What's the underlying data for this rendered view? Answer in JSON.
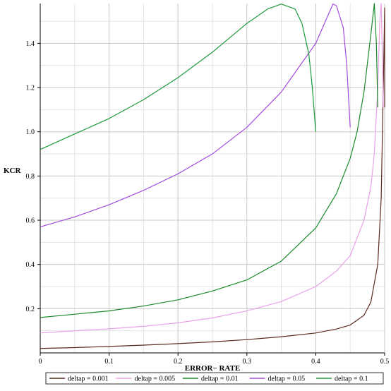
{
  "chart_data": {
    "type": "line",
    "title": "",
    "xlabel": "ERROR− RATE",
    "ylabel": "KCR",
    "xlim": [
      0,
      0.5
    ],
    "ylim": [
      0,
      1.58
    ],
    "x_ticks": [
      "0",
      "0.1",
      "0.2",
      "0.3",
      "0.4",
      "0.5"
    ],
    "y_ticks": [
      "0.2",
      "0.4",
      "0.6",
      "0.8",
      "1.0",
      "1.2",
      "1.4"
    ],
    "grid": true,
    "legend_position": "bottom",
    "series": [
      {
        "name": "deltap = 0.001",
        "color": "#5c2a1e",
        "points": [
          [
            0,
            0.02
          ],
          [
            0.05,
            0.024
          ],
          [
            0.1,
            0.029
          ],
          [
            0.15,
            0.035
          ],
          [
            0.2,
            0.042
          ],
          [
            0.25,
            0.05
          ],
          [
            0.3,
            0.06
          ],
          [
            0.35,
            0.073
          ],
          [
            0.4,
            0.09
          ],
          [
            0.43,
            0.108
          ],
          [
            0.45,
            0.126
          ],
          [
            0.47,
            0.17
          ],
          [
            0.48,
            0.23
          ],
          [
            0.49,
            0.4
          ],
          [
            0.495,
            0.7
          ],
          [
            0.498,
            1.2
          ],
          [
            0.5,
            1.56
          ],
          [
            0.5,
            1.11
          ]
        ]
      },
      {
        "name": "deltap = 0.005",
        "color": "#e8a0e8",
        "points": [
          [
            0,
            0.09
          ],
          [
            0.05,
            0.1
          ],
          [
            0.1,
            0.109
          ],
          [
            0.15,
            0.12
          ],
          [
            0.2,
            0.136
          ],
          [
            0.25,
            0.158
          ],
          [
            0.3,
            0.19
          ],
          [
            0.35,
            0.232
          ],
          [
            0.4,
            0.3
          ],
          [
            0.43,
            0.37
          ],
          [
            0.45,
            0.44
          ],
          [
            0.47,
            0.6
          ],
          [
            0.48,
            0.75
          ],
          [
            0.485,
            0.9
          ],
          [
            0.49,
            1.2
          ],
          [
            0.493,
            1.5
          ],
          [
            0.495,
            1.58
          ],
          [
            0.497,
            1.3
          ],
          [
            0.498,
            1.11
          ]
        ]
      },
      {
        "name": "deltap = 0.01",
        "color": "#1a8a2a",
        "points": [
          [
            0,
            0.16
          ],
          [
            0.05,
            0.175
          ],
          [
            0.1,
            0.19
          ],
          [
            0.15,
            0.212
          ],
          [
            0.2,
            0.24
          ],
          [
            0.25,
            0.28
          ],
          [
            0.3,
            0.33
          ],
          [
            0.35,
            0.415
          ],
          [
            0.4,
            0.565
          ],
          [
            0.43,
            0.72
          ],
          [
            0.45,
            0.88
          ],
          [
            0.46,
            1.0
          ],
          [
            0.47,
            1.18
          ],
          [
            0.48,
            1.44
          ],
          [
            0.485,
            1.58
          ],
          [
            0.488,
            1.4
          ],
          [
            0.49,
            1.11
          ]
        ]
      },
      {
        "name": "deltap = 0.05",
        "color": "#a24ae0",
        "points": [
          [
            0,
            0.57
          ],
          [
            0.05,
            0.615
          ],
          [
            0.1,
            0.67
          ],
          [
            0.15,
            0.735
          ],
          [
            0.2,
            0.81
          ],
          [
            0.25,
            0.9
          ],
          [
            0.3,
            1.02
          ],
          [
            0.35,
            1.18
          ],
          [
            0.4,
            1.4
          ],
          [
            0.425,
            1.578
          ],
          [
            0.43,
            1.57
          ],
          [
            0.44,
            1.47
          ],
          [
            0.445,
            1.3
          ],
          [
            0.45,
            1.02
          ]
        ]
      },
      {
        "name": "deltap = 0.1",
        "color": "#1e9a3a",
        "points": [
          [
            0,
            0.92
          ],
          [
            0.05,
            0.99
          ],
          [
            0.1,
            1.06
          ],
          [
            0.15,
            1.145
          ],
          [
            0.2,
            1.245
          ],
          [
            0.25,
            1.36
          ],
          [
            0.3,
            1.49
          ],
          [
            0.33,
            1.555
          ],
          [
            0.35,
            1.578
          ],
          [
            0.37,
            1.555
          ],
          [
            0.38,
            1.49
          ],
          [
            0.39,
            1.35
          ],
          [
            0.395,
            1.2
          ],
          [
            0.4,
            1.0
          ]
        ]
      }
    ]
  }
}
